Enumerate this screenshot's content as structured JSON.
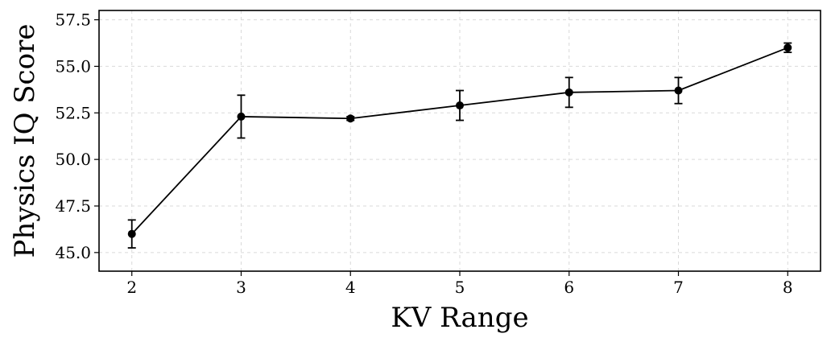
{
  "chart_data": {
    "type": "line",
    "xlabel": "KV Range",
    "ylabel": "Physics IQ Score",
    "x": [
      2,
      3,
      4,
      5,
      6,
      7,
      8
    ],
    "x_ticks": [
      "2",
      "3",
      "4",
      "5",
      "6",
      "7",
      "8"
    ],
    "xlim": [
      1.7,
      8.3
    ],
    "ylim": [
      44.0,
      58.0
    ],
    "y_ticks": [
      "45.0",
      "47.5",
      "50.0",
      "52.5",
      "55.0",
      "57.5"
    ],
    "series": [
      {
        "values": [
          46.0,
          52.3,
          52.2,
          52.9,
          53.6,
          53.7,
          56.0
        ],
        "errors": [
          0.75,
          1.15,
          0.1,
          0.8,
          0.8,
          0.7,
          0.25
        ],
        "color": "#000000",
        "marker": "circle"
      }
    ],
    "grid": true
  }
}
